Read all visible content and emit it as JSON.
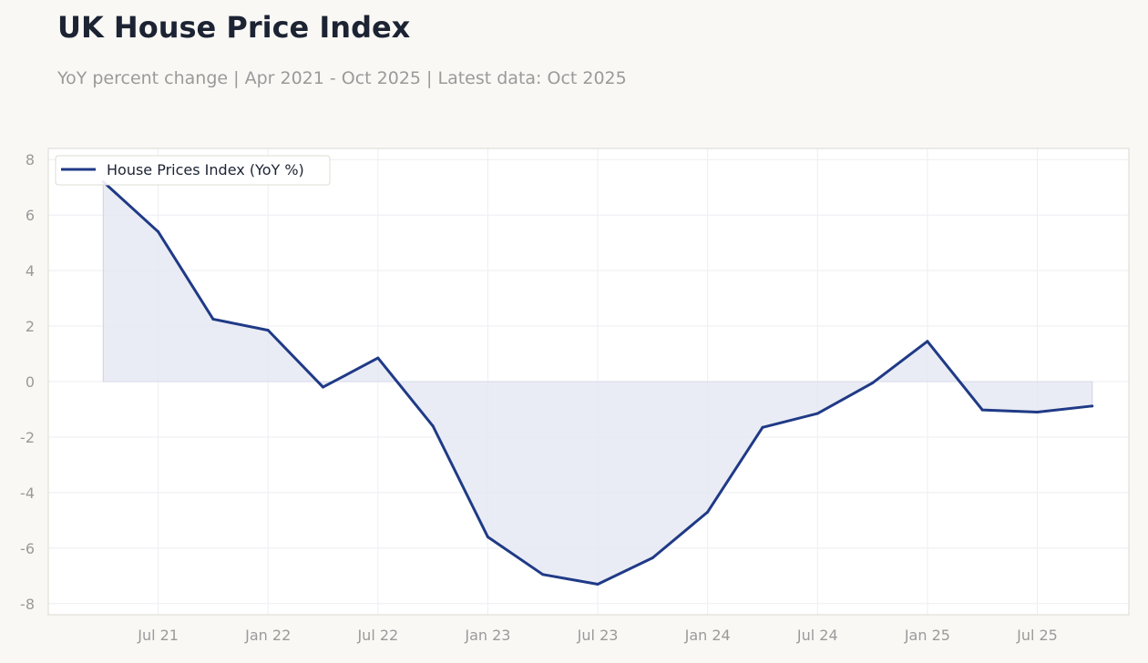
{
  "header": {
    "title": "UK House Price Index",
    "subtitle": "YoY percent change | Apr 2021 - Oct 2025 | Latest data: Oct 2025"
  },
  "colors": {
    "line": "#1f3a86",
    "fill": "#e3e5f1",
    "grid": "#eeeef3",
    "frame": "#dcdad2",
    "plot_bg": "#ffffff",
    "page_bg": "#f9f8f5",
    "tick_text": "#9a9a9a"
  },
  "chart_data": {
    "type": "area",
    "title": "UK House Price Index",
    "subtitle": "YoY percent change | Apr 2021 - Oct 2025 | Latest data: Oct 2025",
    "xlabel": "",
    "ylabel": "",
    "x": [
      "2021-04",
      "2021-07",
      "2021-10",
      "2022-01",
      "2022-04",
      "2022-07",
      "2022-10",
      "2023-01",
      "2023-04",
      "2023-07",
      "2023-10",
      "2024-01",
      "2024-04",
      "2024-07",
      "2024-10",
      "2025-01",
      "2025-04",
      "2025-07",
      "2025-10"
    ],
    "series": [
      {
        "name": "House Prices Index (YoY %)",
        "values": [
          7.2,
          5.4,
          2.25,
          1.85,
          -0.2,
          0.85,
          -1.6,
          -5.6,
          -6.95,
          -7.3,
          -6.35,
          -4.7,
          -1.65,
          -1.15,
          -0.05,
          1.45,
          -1.02,
          -1.1,
          -0.88
        ]
      }
    ],
    "xticks": [
      {
        "label": "Jul 21",
        "x": "2021-07"
      },
      {
        "label": "Jan 22",
        "x": "2022-01"
      },
      {
        "label": "Jul 22",
        "x": "2022-07"
      },
      {
        "label": "Jan 23",
        "x": "2023-01"
      },
      {
        "label": "Jul 23",
        "x": "2023-07"
      },
      {
        "label": "Jan 24",
        "x": "2024-01"
      },
      {
        "label": "Jul 24",
        "x": "2024-07"
      },
      {
        "label": "Jan 25",
        "x": "2025-01"
      },
      {
        "label": "Jul 25",
        "x": "2025-07"
      }
    ],
    "yticks": [
      "8",
      "6",
      "4",
      "2",
      "0",
      "-2",
      "-4",
      "-6",
      "-8"
    ],
    "ylim": [
      -8.4,
      8.4
    ],
    "xlim": [
      "2021-01",
      "2025-12"
    ],
    "grid": true,
    "fill_to_zero": true,
    "legend_position": "top-left"
  }
}
